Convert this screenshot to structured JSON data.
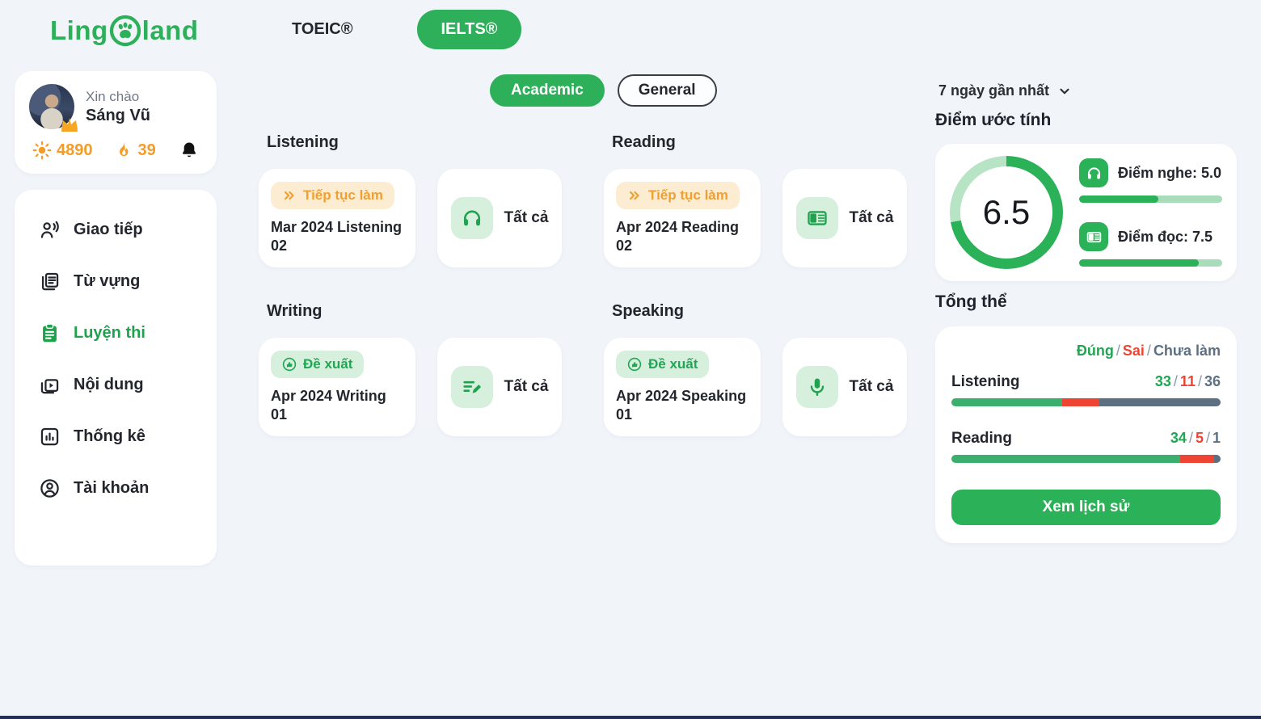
{
  "header": {
    "logo_pre": "Ling",
    "logo_post": "land",
    "tabs": [
      {
        "label": "TOEIC®",
        "active": false
      },
      {
        "label": "IELTS®",
        "active": true
      }
    ]
  },
  "user": {
    "greeting": "Xin chào",
    "name": "Sáng Vũ",
    "points": "4890",
    "streak": "39"
  },
  "sidebar": {
    "items": [
      {
        "label": "Giao tiếp",
        "icon": "speaking-person-icon",
        "active": false
      },
      {
        "label": "Từ vựng",
        "icon": "flashcards-icon",
        "active": false
      },
      {
        "label": "Luyện thi",
        "icon": "clipboard-icon",
        "active": true
      },
      {
        "label": "Nội dung",
        "icon": "video-icon",
        "active": false
      },
      {
        "label": "Thống kê",
        "icon": "bar-chart-icon",
        "active": false
      },
      {
        "label": "Tài khoản",
        "icon": "account-icon",
        "active": false
      }
    ]
  },
  "filters": {
    "academic": "Academic",
    "general": "General"
  },
  "sections": [
    {
      "title": "Listening",
      "badge": "Tiếp tục làm",
      "badge_type": "continue",
      "card_title": "Mar 2024 Listening 02",
      "all_label": "Tất cả",
      "all_icon": "headphones-icon"
    },
    {
      "title": "Reading",
      "badge": "Tiếp tục làm",
      "badge_type": "continue",
      "card_title": "Apr 2024 Reading 02",
      "all_label": "Tất cả",
      "all_icon": "reading-icon"
    },
    {
      "title": "Writing",
      "badge": "Đề xuất",
      "badge_type": "suggest",
      "card_title": "Apr 2024 Writing 01",
      "all_label": "Tất cả",
      "all_icon": "writing-icon"
    },
    {
      "title": "Speaking",
      "badge": "Đề xuất",
      "badge_type": "suggest",
      "card_title": "Apr 2024 Speaking 01",
      "all_label": "Tất cả",
      "all_icon": "microphone-icon"
    }
  ],
  "right_panel": {
    "period": "7 ngày gần nhất",
    "estimated_title": "Điểm ước tính",
    "gauge": {
      "value": 6.5,
      "max": 9,
      "display": "6.5"
    },
    "scores": [
      {
        "label": "Điểm nghe: 5.0",
        "value": 5.0,
        "max": 9,
        "icon": "headphones-icon"
      },
      {
        "label": "Điểm đọc: 7.5",
        "value": 7.5,
        "max": 9,
        "icon": "reading-icon"
      }
    ],
    "overall_title": "Tổng thể",
    "legend": {
      "correct": "Đúng",
      "wrong": "Sai",
      "not_done": "Chưa làm",
      "separator": "/"
    },
    "rows": [
      {
        "label": "Listening",
        "correct": 33,
        "wrong": 11,
        "not_done": 36
      },
      {
        "label": "Reading",
        "correct": 34,
        "wrong": 5,
        "not_done": 1
      }
    ],
    "history_button": "Xem lịch sử"
  },
  "colors": {
    "primary_green": "#2bb157",
    "gauge_track": "#b7e4c5",
    "light_green": "#d7f0de",
    "orange": "#f59c27",
    "cream": "#fcecd1",
    "red": "#ee4434",
    "slate": "#5c7082"
  }
}
